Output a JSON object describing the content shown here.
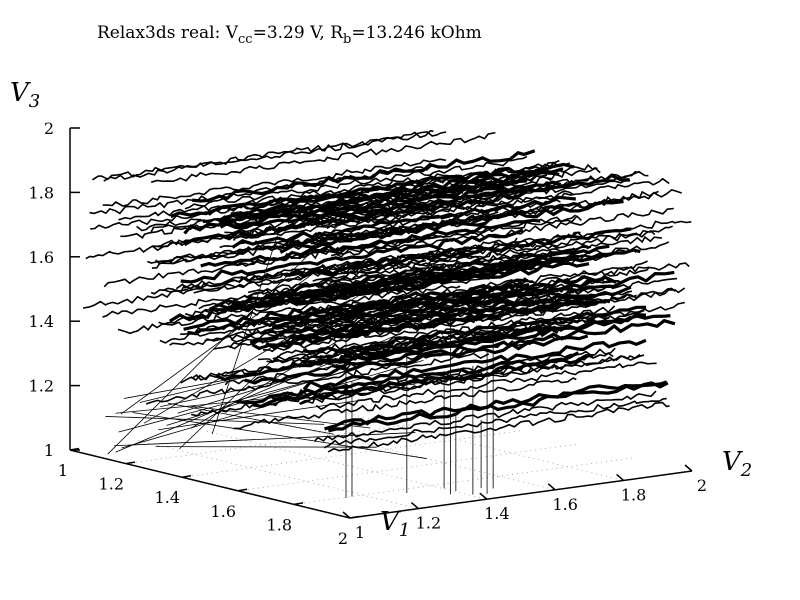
{
  "chart_data": {
    "type": "scatter-3d",
    "title": {
      "prefix": "Relax3ds real: V",
      "vcc_sub": "cc",
      "vcc_value": "=3.29 V, R",
      "rb_sub": "b",
      "rb_value": "=13.246 kOhm"
    },
    "axes": {
      "x": {
        "label_base": "V",
        "label_sub": "1",
        "range": [
          1,
          2
        ],
        "ticks": [
          "1",
          "1.2",
          "1.4",
          "1.6",
          "1.8",
          "2"
        ]
      },
      "y": {
        "label_base": "V",
        "label_sub": "2",
        "range": [
          1,
          2
        ],
        "ticks": [
          "1",
          "1.2",
          "1.4",
          "1.6",
          "1.8",
          "2"
        ]
      },
      "z": {
        "label_base": "V",
        "label_sub": "3",
        "range": [
          1,
          2
        ],
        "ticks": [
          "1",
          "1.2",
          "1.4",
          "1.6",
          "1.8",
          "2"
        ]
      }
    },
    "grid": true,
    "series": [
      {
        "style": "lines",
        "color": "#000000",
        "v3_levels": [
          1.2,
          1.31,
          1.41,
          1.45,
          1.5,
          1.55,
          1.6,
          1.64,
          1.7,
          1.75,
          1.79,
          1.85,
          1.88
        ],
        "v1_range": [
          1.05,
          2.0
        ],
        "v2_range": [
          1.0,
          2.0
        ]
      }
    ]
  }
}
